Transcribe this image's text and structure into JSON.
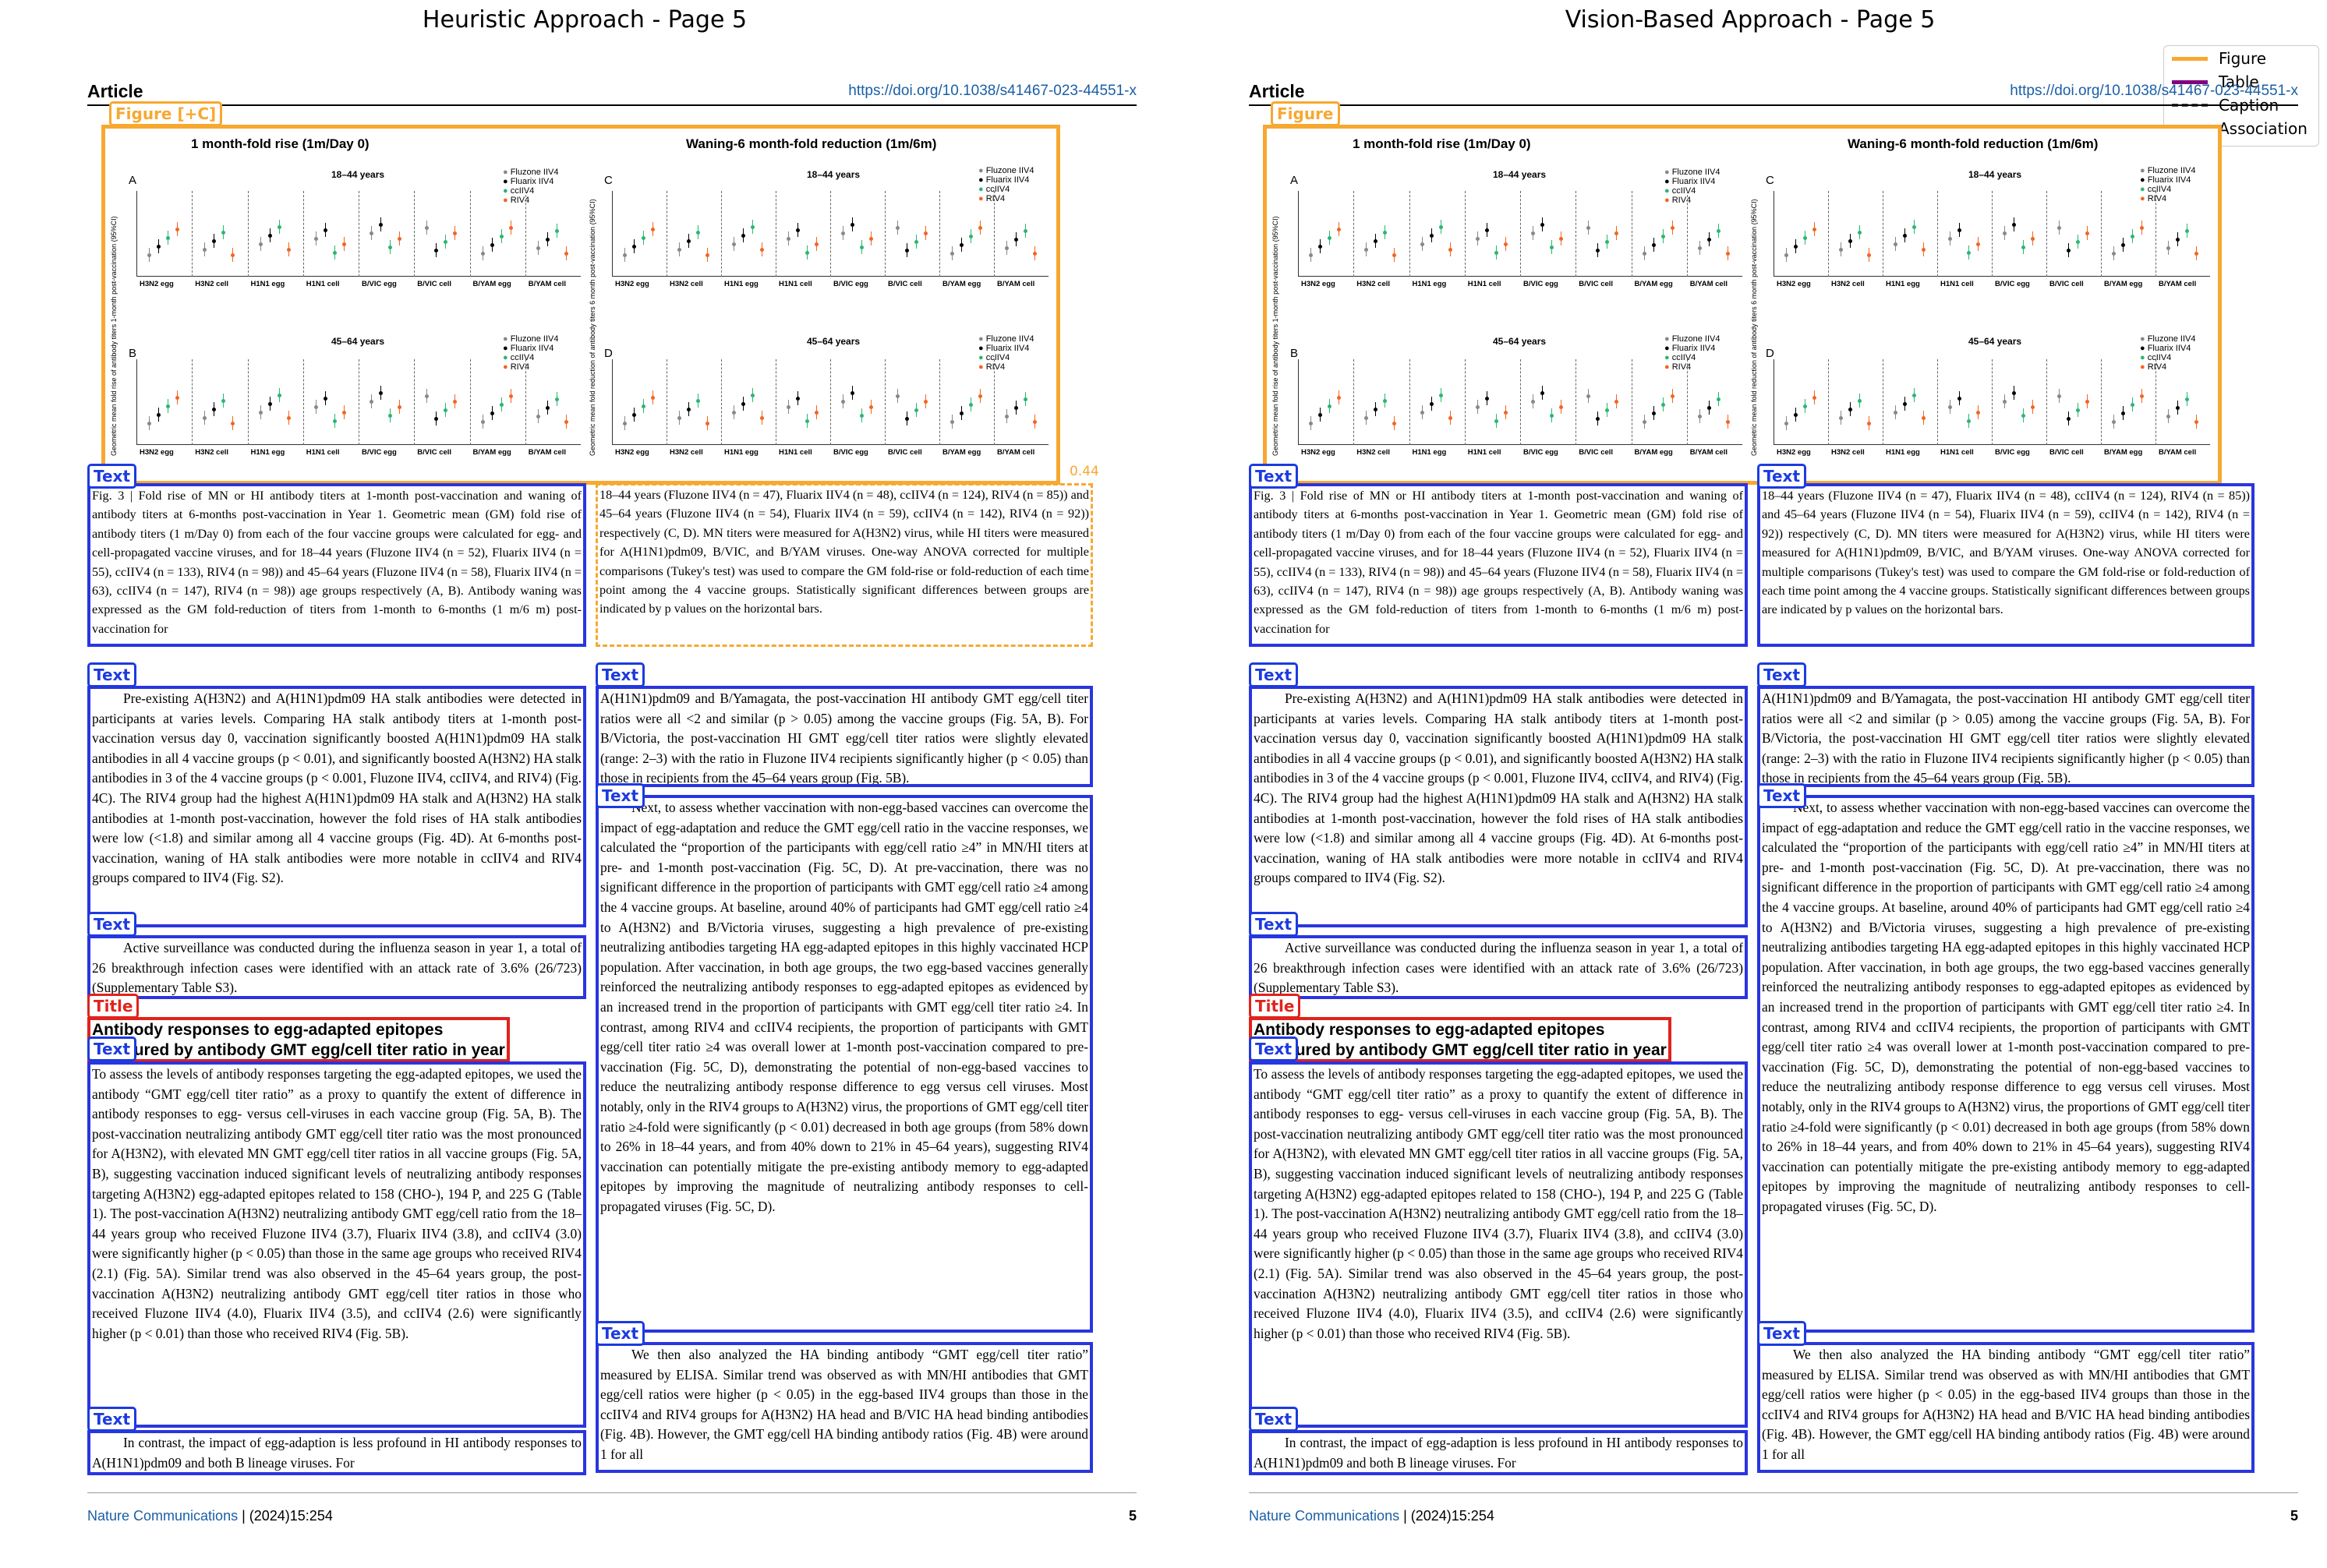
{
  "titles": {
    "left": "Heuristic Approach - Page 5",
    "right": "Vision-Based Approach - Page 5"
  },
  "legend": {
    "figure": "Figure",
    "table": "Table",
    "caption": "Caption",
    "association": "Association"
  },
  "colors": {
    "figure": "#f7a830",
    "text": "#1c3be0",
    "title": "#e0231c",
    "table": "#800080"
  },
  "page": {
    "article": "Article",
    "doi": "https://doi.org/10.1038/s41467-023-44551-x",
    "footer_journal": "Nature Communications",
    "footer_rest": " | (2024)15:254",
    "page_number": "5",
    "figure": {
      "left_title": "1 month-fold rise (1m/Day 0)",
      "right_title": "Waning-6 month-fold reduction (1m/6m)",
      "panels": {
        "A": "A",
        "B": "B",
        "C": "C",
        "D": "D"
      },
      "age_1": "18–44 years",
      "age_2": "45–64 years",
      "series": [
        "Fluzone IIV4",
        "Fluarix IIV4",
        "ccIIV4",
        "RIV4"
      ],
      "categories": [
        "H3N2 egg",
        "H3N2 cell",
        "H1N1 egg",
        "H1N1 cell",
        "B/VIC egg",
        "B/VIC cell",
        "B/YAM egg",
        "B/YAM cell"
      ],
      "ylabel_left": "Geometric mean fold rise of antibody titers 1-month post-vaccination (95%CI)",
      "ylabel_right": "Geometric mean fold reduction of antibody titers 6 month post-vaccination (95%CI)"
    },
    "labels": {
      "figure_left": "Figure [+C]",
      "figure_right": "Figure",
      "text": "Text",
      "title": "Title"
    },
    "assoc_score": "0.44",
    "caption_left": "Fig. 3 | Fold rise of MN or HI antibody titers at 1-month post-vaccination and waning of antibody titers at 6-months post-vaccination in Year 1. Geometric mean (GM) fold rise of antibody titers (1 m/Day 0) from each of the four vaccine groups were calculated for egg- and cell-propagated vaccine viruses, and for 18–44 years (Fluzone IIV4 (n = 52), Fluarix IIV4 (n = 55), ccIIV4 (n = 133), RIV4 (n = 98)) and 45–64 years (Fluzone IIV4 (n = 58), Fluarix IIV4 (n = 63), ccIIV4 (n = 147), RIV4 (n = 98)) age groups respectively (A, B). Antibody waning was expressed as the GM fold-reduction of titers from 1-month to 6-months (1 m/6 m) post-vaccination for",
    "caption_right": "18–44 years (Fluzone IIV4 (n = 47), Fluarix IIV4 (n = 48), ccIIV4 (n = 124), RIV4 (n = 85)) and 45–64 years (Fluzone IIV4 (n = 54), Fluarix IIV4 (n = 59), ccIIV4 (n = 142), RIV4 (n = 92)) respectively (C, D). MN titers were measured for A(H3N2) virus, while HI titers were measured for A(H1N1)pdm09, B/VIC, and B/YAM viruses. One-way ANOVA corrected for multiple comparisons (Tukey's test) was used to compare the GM fold-rise or fold-reduction of each time point among the 4 vaccine groups. Statistically significant differences between groups are indicated by p values on the horizontal bars.",
    "para1": "Pre-existing A(H3N2) and A(H1N1)pdm09 HA stalk antibodies were detected in participants at varies levels. Comparing HA stalk antibody titers at 1-month post-vaccination versus day 0, vaccination significantly boosted A(H1N1)pdm09 HA stalk antibodies in all 4 vaccine groups (p < 0.01), and significantly boosted A(H3N2) HA stalk antibodies in 3 of the 4 vaccine groups (p < 0.001, Fluzone IIV4, ccIIV4, and RIV4) (Fig. 4C). The RIV4 group had the highest A(H1N1)pdm09 HA stalk and A(H3N2) HA stalk antibodies at 1-month post-vaccination, however the fold rises of HA stalk antibodies were low (<1.8) and similar among all 4 vaccine groups (Fig. 4D). At 6-months post-vaccination, waning of HA stalk antibodies were more notable in ccIIV4 and RIV4 groups compared to IIV4 (Fig. S2).",
    "para2": "Active surveillance was conducted during the influenza season in year 1, a total of 26 breakthrough infection cases were identified with an attack rate of 3.6% (26/723) (Supplementary Table S3).",
    "heading": "Antibody responses to egg-adapted epitopes measured by antibody GMT egg/cell titer ratio in year 1",
    "para3": "To assess the levels of antibody responses targeting the egg-adapted epitopes, we used the antibody “GMT egg/cell titer ratio” as a proxy to quantify the extent of difference in antibody responses to egg- versus cell-viruses in each vaccine group (Fig. 5A, B). The post-vaccination neutralizing antibody GMT egg/cell titer ratio was the most pronounced for A(H3N2), with elevated MN GMT egg/cell titer ratios in all vaccine groups (Fig. 5A, B), suggesting vaccination induced significant levels of neutralizing antibody responses targeting A(H3N2) egg-adapted epitopes related to 158 (CHO-), 194 P, and 225 G (Table 1). The post-vaccination A(H3N2) neutralizing antibody GMT egg/cell ratio from the 18–44 years group who received Fluzone IIV4 (3.7), Fluarix IIV4 (3.8), and ccIIV4 (3.0) were significantly higher (p < 0.05) than those in the same age groups who received RIV4 (2.1) (Fig. 5A). Similar trend was also observed in the 45–64 years group, the post-vaccination A(H3N2) neutralizing antibody GMT egg/cell titer ratios in those who received Fluzone IIV4 (4.0), Fluarix IIV4 (3.5), and ccIIV4 (2.6) were significantly higher (p < 0.01) than those who received RIV4 (Fig. 5B).",
    "para4": "In contrast, the impact of egg-adaption is less profound in HI antibody responses to A(H1N1)pdm09 and both B lineage viruses. For",
    "para5": "A(H1N1)pdm09 and B/Yamagata, the post-vaccination HI antibody GMT egg/cell titer ratios were all <2 and similar (p > 0.05) among the vaccine groups (Fig. 5A, B). For B/Victoria, the post-vaccination HI GMT egg/cell titer ratios were slightly elevated (range: 2–3) with the ratio in Fluzone IIV4 recipients significantly higher (p < 0.05) than those in recipients from the 45–64 years group (Fig. 5B).",
    "para6": "Next, to assess whether vaccination with non-egg-based vaccines can overcome the impact of egg-adaptation and reduce the GMT egg/cell ratio in the vaccine responses, we calculated the “proportion of the participants with egg/cell ratio ≥4” in MN/HI titers at pre- and 1-month post-vaccination (Fig. 5C, D). At pre-vaccination, there was no significant difference in the proportion of participants with GMT egg/cell ratio ≥4 among the 4 vaccine groups. At baseline, around 40% of participants had GMT egg/cell ratio ≥4 to A(H3N2) and B/Victoria viruses, suggesting a high prevalence of pre-existing neutralizing antibodies targeting HA egg-adapted epitopes in this highly vaccinated HCP population. After vaccination, in both age groups, the two egg-based vaccines generally reinforced the neutralizing antibody responses to egg-adapted epitopes as evidenced by an increased trend in the proportion of participants with GMT egg/cell titer ratio ≥4. In contrast, among RIV4 and ccIIV4 recipients, the proportion of participants with GMT egg/cell titer ratio ≥4 was overall lower at 1-month post-vaccination compared to pre-vaccination (Fig. 5C, D), demonstrating the potential of non-egg-based vaccines to reduce the neutralizing antibody response difference to egg versus cell viruses. Most notably, only in the RIV4 groups to A(H3N2) virus, the proportions of GMT egg/cell titer ratio ≥4-fold were significantly (p < 0.01) decreased in both age groups (from 58% down to 26% in 18–44 years, and from 40% down to 21% in 45–64 years), suggesting RIV4 vaccination can potentially mitigate the pre-existing antibody memory to egg-adapted epitopes by improving the magnitude of neutralizing antibody responses to cell-propagated viruses (Fig. 5C, D).",
    "para7": "We then also analyzed the HA binding antibody “GMT egg/cell titer ratio” measured by ELISA. Similar trend was observed as with MN/HI antibodies that GMT egg/cell ratios were higher (p < 0.05) in the egg-based IIV4 groups than those in the ccIIV4 and RIV4 groups for A(H3N2) HA head and B/VIC HA head binding antibodies (Fig. 4B). However, the GMT egg/cell HA binding antibody ratios (Fig. 4B) were around 1 for all"
  }
}
